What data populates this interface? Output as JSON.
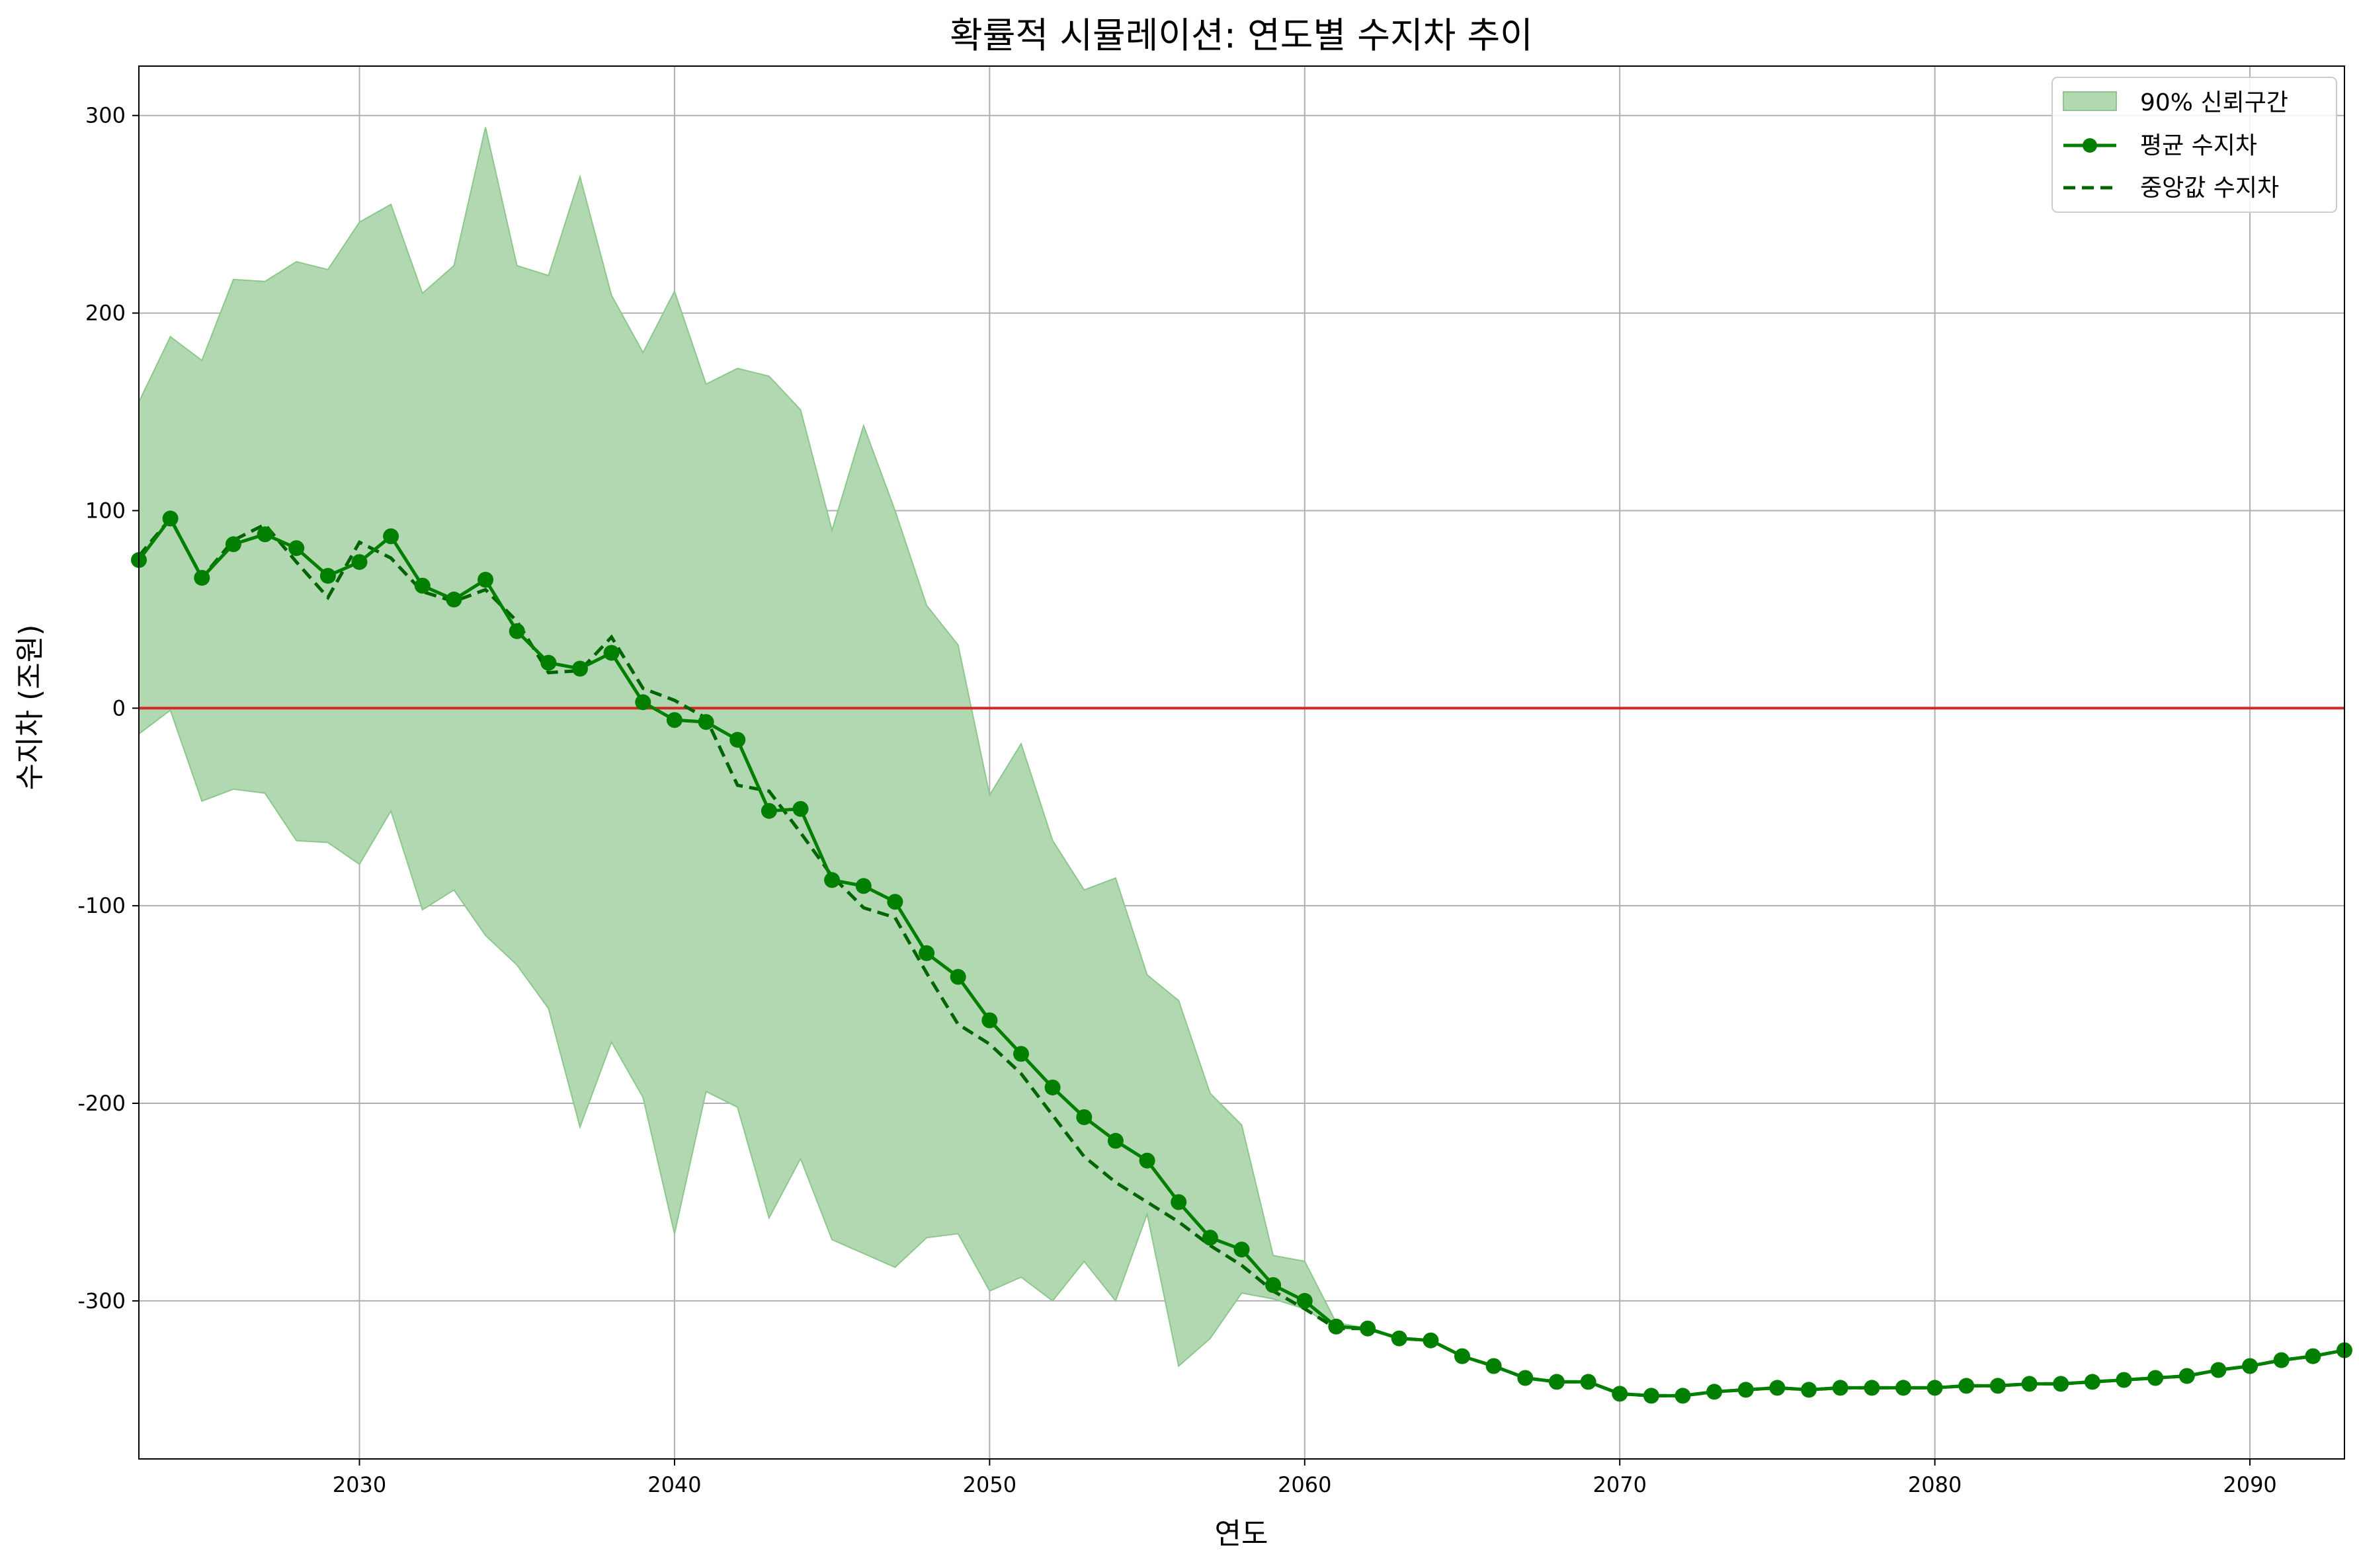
{
  "chart_data": {
    "type": "line",
    "title": "확률적 시뮬레이션: 연도별 수지차 추이",
    "xlabel": "연도",
    "ylabel": "수지차 (조원)",
    "xlim": [
      2023,
      2093
    ],
    "ylim": [
      -380,
      325
    ],
    "xticks": [
      2030,
      2040,
      2050,
      2060,
      2070,
      2080,
      2090
    ],
    "yticks": [
      -300,
      -200,
      -100,
      0,
      100,
      200,
      300
    ],
    "ytick_labels": [
      "-300",
      "-200",
      "-100",
      "0",
      "100",
      "200",
      "300"
    ],
    "grid": true,
    "legend_position": "top-right",
    "reference_line": {
      "y": 0,
      "color": "#d62728"
    },
    "x": [
      2023,
      2024,
      2025,
      2026,
      2027,
      2028,
      2029,
      2030,
      2031,
      2032,
      2033,
      2034,
      2035,
      2036,
      2037,
      2038,
      2039,
      2040,
      2041,
      2042,
      2043,
      2044,
      2045,
      2046,
      2047,
      2048,
      2049,
      2050,
      2051,
      2052,
      2053,
      2054,
      2055,
      2056,
      2057,
      2058,
      2059,
      2060,
      2061,
      2062,
      2063,
      2064,
      2065,
      2066,
      2067,
      2068,
      2069,
      2070,
      2071,
      2072,
      2073,
      2074,
      2075,
      2076,
      2077,
      2078,
      2079,
      2080,
      2081,
      2082,
      2083,
      2084,
      2085,
      2086,
      2087,
      2088,
      2089,
      2090,
      2091,
      2092,
      2093
    ],
    "series": [
      {
        "name": "90% 신뢰구간",
        "kind": "band",
        "color": "#b2d8b2",
        "upper": [
          155,
          188,
          176,
          217,
          216,
          226,
          222,
          246,
          255,
          210,
          224,
          294,
          224,
          219,
          269,
          209,
          180,
          211,
          164,
          172,
          168,
          151,
          90,
          143,
          100,
          52,
          32,
          -44,
          -18,
          -67,
          -92,
          -86,
          -135,
          -148,
          -195,
          -211,
          -277,
          -280,
          -311,
          -314,
          -319,
          -320,
          -328,
          -333,
          -339,
          -341,
          -341,
          -347,
          -348,
          -348,
          -346,
          -345,
          -344,
          -345,
          -344,
          -344,
          -344,
          -344,
          -343,
          -343,
          -342,
          -342,
          -341,
          -340,
          -339,
          -338,
          -335,
          -333,
          -330,
          -328,
          -325
        ],
        "lower": [
          -13,
          -1,
          -47,
          -41,
          -43,
          -67,
          -68,
          -79,
          -52,
          -102,
          -92,
          -115,
          -130,
          -152,
          -212,
          -169,
          -197,
          -266,
          -194,
          -202,
          -258,
          -228,
          -269,
          -276,
          -283,
          -268,
          -266,
          -295,
          -288,
          -300,
          -280,
          -300,
          -256,
          -333,
          -319,
          -296,
          -299,
          -304,
          -314,
          -314,
          -319,
          -320,
          -328,
          -333,
          -339,
          -341,
          -341,
          -347,
          -348,
          -348,
          -346,
          -345,
          -344,
          -345,
          -344,
          -344,
          -344,
          -344,
          -343,
          -343,
          -342,
          -342,
          -341,
          -340,
          -339,
          -338,
          -335,
          -333,
          -330,
          -328,
          -325
        ]
      },
      {
        "name": "평균 수지차",
        "kind": "line-markers",
        "color": "#007f00",
        "values": [
          75,
          96,
          66,
          83,
          88,
          81,
          67,
          74,
          87,
          62,
          55,
          65,
          39,
          23,
          20,
          28,
          3,
          -6,
          -7,
          -16,
          -52,
          -51,
          -87,
          -90,
          -98,
          -124,
          -136,
          -158,
          -175,
          -192,
          -207,
          -219,
          -229,
          -250,
          -268,
          -274,
          -292,
          -300,
          -313,
          -314,
          -319,
          -320,
          -328,
          -333,
          -339,
          -341,
          -341,
          -347,
          -348,
          -348,
          -346,
          -345,
          -344,
          -345,
          -344,
          -344,
          -344,
          -344,
          -343,
          -343,
          -342,
          -342,
          -341,
          -340,
          -339,
          -338,
          -335,
          -333,
          -330,
          -328,
          -325
        ]
      },
      {
        "name": "중앙값 수지차",
        "kind": "dashed-line",
        "color": "#006400",
        "values": [
          77,
          96,
          66,
          85,
          93,
          74,
          56,
          84,
          76,
          59,
          54,
          60,
          44,
          18,
          19,
          36,
          10,
          4,
          -5,
          -39,
          -42,
          -63,
          -85,
          -101,
          -106,
          -134,
          -160,
          -170,
          -185,
          -206,
          -227,
          -240,
          -250,
          -260,
          -272,
          -282,
          -295,
          -304,
          -314,
          -314,
          -319,
          -320,
          -328,
          -333,
          -339,
          -341,
          -341,
          -347,
          -348,
          -348,
          -346,
          -345,
          -344,
          -345,
          -344,
          -344,
          -344,
          -344,
          -343,
          -343,
          -342,
          -342,
          -341,
          -340,
          -339,
          -338,
          -335,
          -333,
          -330,
          -328,
          -325
        ]
      }
    ]
  }
}
